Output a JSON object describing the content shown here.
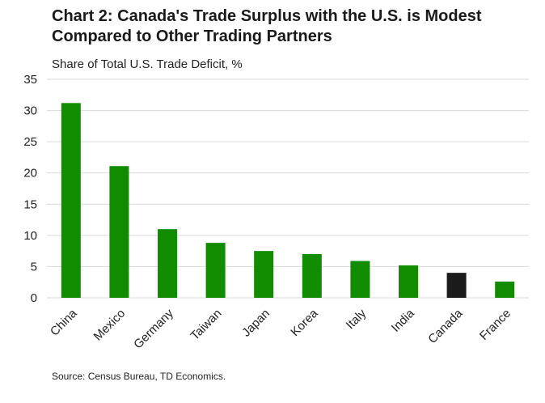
{
  "title_line1": "Chart 2: Canada's Trade Surplus with the U.S. is Modest",
  "title_line2": "Compared to Other Trading Partners",
  "subtitle": "Share of Total U.S. Trade Deficit, %",
  "source": "Source: Census Bureau, TD Economics.",
  "colors": {
    "default_bar": "#118c00",
    "highlight_bar": "#1b1b1b",
    "grid": "#d9d9d9"
  },
  "chart_data": {
    "type": "bar",
    "categories": [
      "China",
      "Mexico",
      "Germany",
      "Taiwan",
      "Japan",
      "Korea",
      "Italy",
      "India",
      "Canada",
      "France"
    ],
    "values": [
      31.2,
      21.1,
      11.0,
      8.8,
      7.5,
      7.0,
      5.9,
      5.2,
      4.0,
      2.6
    ],
    "highlight": "Canada",
    "ylabel": "Share of Total U.S. Trade Deficit, %",
    "ylim": [
      0,
      35
    ],
    "yticks": [
      0,
      5,
      10,
      15,
      20,
      25,
      30,
      35
    ],
    "grid": true,
    "legend": "none"
  }
}
